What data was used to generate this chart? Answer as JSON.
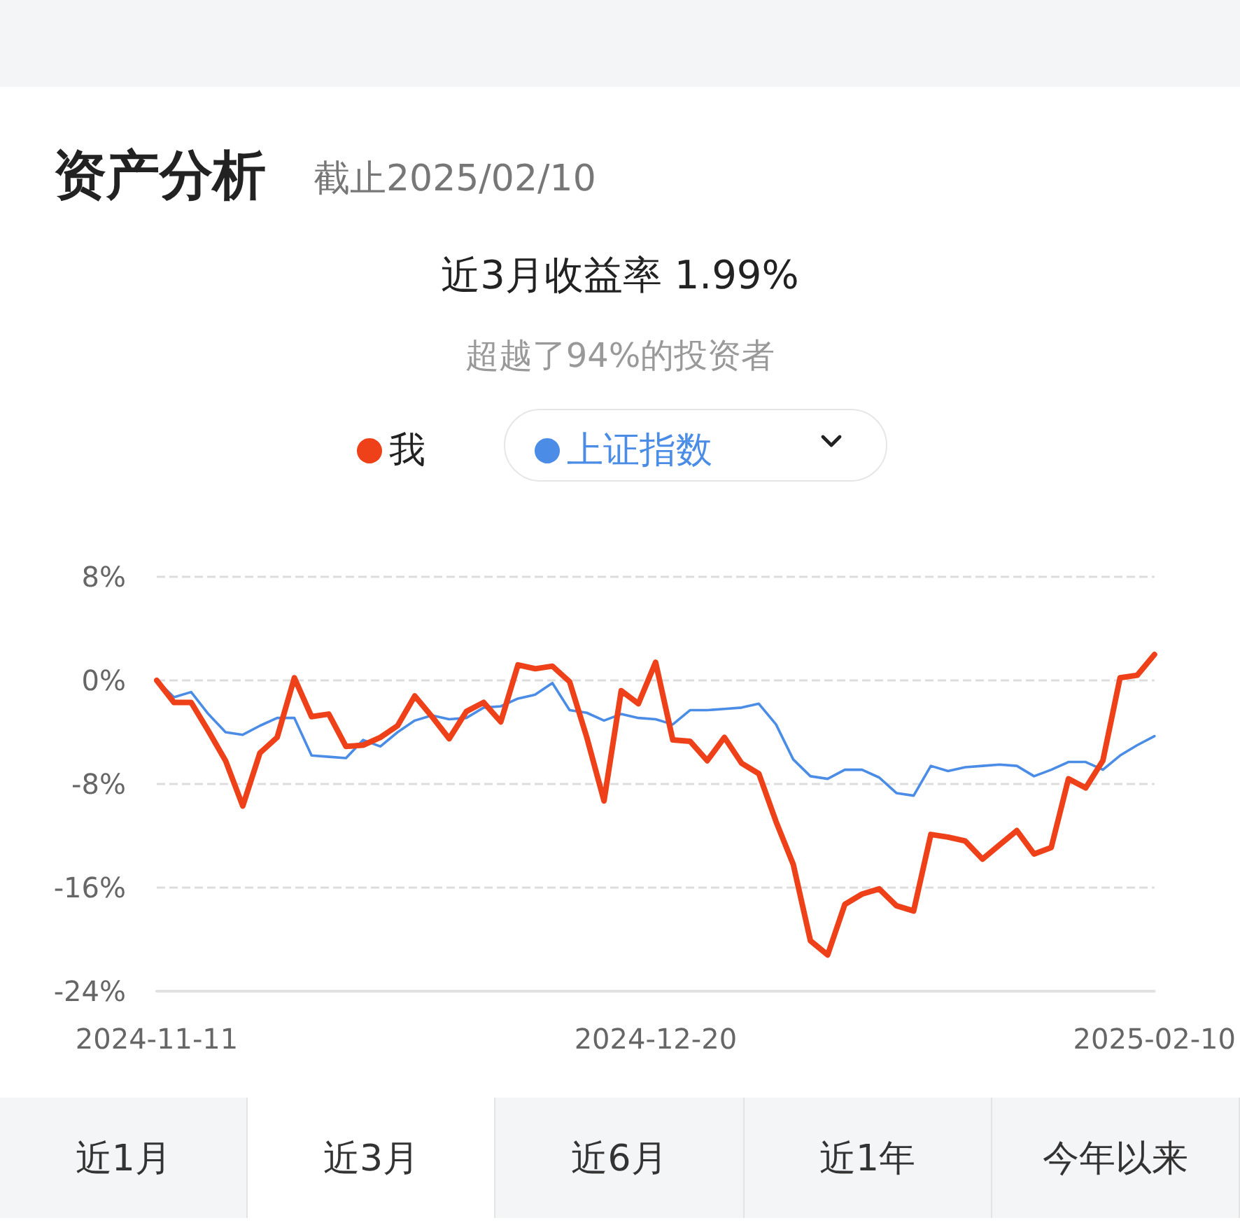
{
  "chart_data": {
    "type": "line",
    "title": "资产分析",
    "subtitle": "截止2025/02/10",
    "annotations": [
      "近3月收益率 1.99%",
      "超越了94%的投资者",
      "近1月",
      "近3月",
      "近6月",
      "近1年",
      "今年以来"
    ],
    "categories": [
      "2024-11-11",
      null,
      null,
      null,
      null,
      null,
      null,
      null,
      null,
      null,
      null,
      null,
      null,
      null,
      null,
      null,
      null,
      null,
      null,
      null,
      null,
      null,
      null,
      null,
      null,
      null,
      null,
      null,
      null,
      "2024-12-20",
      null,
      null,
      null,
      null,
      null,
      null,
      null,
      null,
      null,
      null,
      null,
      null,
      null,
      null,
      null,
      null,
      null,
      null,
      null,
      null,
      null,
      null,
      null,
      null,
      null,
      null,
      null,
      null,
      "2025-02-10"
    ],
    "series": [
      {
        "name": "我",
        "color": "#ef4119",
        "values": [
          0,
          -1.7,
          -1.7,
          -3.9,
          -6.2,
          -9.7,
          -5.6,
          -4.4,
          0.2,
          -2.8,
          -2.6,
          -5.1,
          -5.0,
          -4.4,
          -3.5,
          -1.2,
          -2.8,
          -4.5,
          -2.4,
          -1.7,
          -3.2,
          1.2,
          0.9,
          1.1,
          -0.1,
          -4.4,
          -9.3,
          -0.8,
          -1.8,
          1.4,
          -4.6,
          -4.7,
          -6.2,
          -4.4,
          -6.4,
          -7.2,
          -10.9,
          -14.2,
          -20.1,
          -21.2,
          -17.3,
          -16.5,
          -16.1,
          -17.4,
          -17.8,
          -11.9,
          -12.1,
          -12.4,
          -13.8,
          -12.7,
          -11.6,
          -13.4,
          -12.9,
          -7.6,
          -8.3,
          -6.2,
          0.2,
          0.4,
          2.0
        ]
      },
      {
        "name": "上证指数",
        "color": "#4a8ce6",
        "values": [
          0,
          -1.3,
          -0.9,
          -2.6,
          -4.0,
          -4.2,
          -3.5,
          -2.9,
          -2.9,
          -5.8,
          -5.9,
          -6.0,
          -4.6,
          -5.1,
          -4.0,
          -3.1,
          -2.7,
          -3.0,
          -2.9,
          -2.1,
          -2.0,
          -1.4,
          -1.1,
          -0.2,
          -2.3,
          -2.5,
          -3.1,
          -2.6,
          -2.9,
          -3.0,
          -3.4,
          -2.3,
          -2.3,
          -2.2,
          -2.1,
          -1.8,
          -3.4,
          -6.1,
          -7.4,
          -7.6,
          -6.9,
          -6.9,
          -7.5,
          -8.7,
          -8.9,
          -6.6,
          -7.0,
          -6.7,
          -6.6,
          -6.5,
          -6.6,
          -7.4,
          -6.9,
          -6.3,
          -6.3,
          -6.9,
          -5.8,
          -5.0,
          -4.3
        ]
      }
    ],
    "ylim": [
      -24,
      8
    ],
    "yticks": [
      {
        "value": -24,
        "label": "-24%"
      },
      {
        "value": -16,
        "label": "-16%"
      },
      {
        "value": -8,
        "label": "-8%"
      },
      {
        "value": 0,
        "label": "0%"
      },
      {
        "value": 8,
        "label": "8%"
      }
    ],
    "grid": "y",
    "legend": "top",
    "marker": "none",
    "line_style": "solid"
  }
}
